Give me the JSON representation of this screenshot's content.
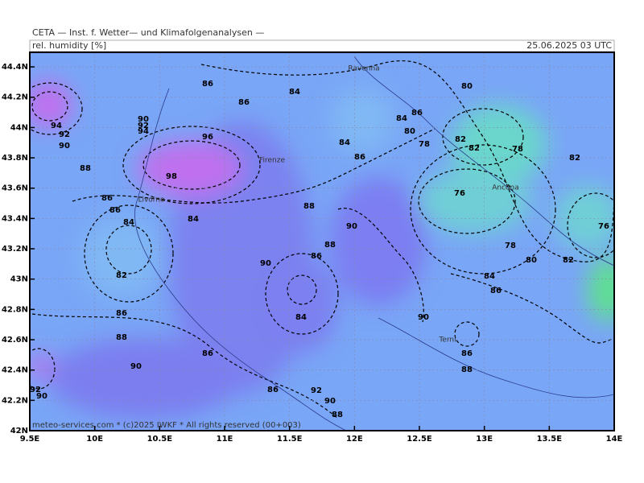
{
  "header": {
    "title": "CETA — Inst. f. Wetter— und Klimafolgenanalysen —",
    "parameter": "rel. humidity [%]",
    "valid_time": "25.06.2025 03 UTC"
  },
  "footer": {
    "copyright": "meteo-services.com * (c)2025 IWKF * All rights reserved (00+003)"
  },
  "axes": {
    "lon_ticks": [
      {
        "value": 9.5,
        "label": "9.5E"
      },
      {
        "value": 10,
        "label": "10E"
      },
      {
        "value": 10.5,
        "label": "10.5E"
      },
      {
        "value": 11,
        "label": "11E"
      },
      {
        "value": 11.5,
        "label": "11.5E"
      },
      {
        "value": 12,
        "label": "12E"
      },
      {
        "value": 12.5,
        "label": "12.5E"
      },
      {
        "value": 13,
        "label": "13E"
      },
      {
        "value": 13.5,
        "label": "13.5E"
      },
      {
        "value": 14,
        "label": "14E"
      }
    ],
    "lat_ticks": [
      {
        "value": 42,
        "label": "42N"
      },
      {
        "value": 42.2,
        "label": "42.2N"
      },
      {
        "value": 42.4,
        "label": "42.4N"
      },
      {
        "value": 42.6,
        "label": "42.6N"
      },
      {
        "value": 42.8,
        "label": "42.8N"
      },
      {
        "value": 43,
        "label": "43N"
      },
      {
        "value": 43.2,
        "label": "43.2N"
      },
      {
        "value": 43.4,
        "label": "43.4N"
      },
      {
        "value": 43.6,
        "label": "43.6N"
      },
      {
        "value": 43.8,
        "label": "43.8N"
      },
      {
        "value": 44,
        "label": "44N"
      },
      {
        "value": 44.2,
        "label": "44.2N"
      },
      {
        "value": 44.4,
        "label": "44.4N"
      }
    ]
  },
  "cities": [
    "Ravenna",
    "Firenze",
    "Livorno",
    "Ancona",
    "Terni"
  ],
  "contour_labels": [
    86,
    84,
    86,
    80,
    86,
    84,
    80,
    78,
    82,
    82,
    78,
    82,
    84,
    86,
    94,
    92,
    90,
    90,
    92,
    94,
    96,
    98,
    88,
    76,
    86,
    86,
    84,
    84,
    88,
    90,
    76,
    78,
    80,
    82,
    88,
    86,
    90,
    82,
    84,
    86,
    86,
    84,
    90,
    88,
    86,
    86,
    88,
    90,
    92,
    90,
    86,
    92,
    90,
    88
  ]
}
